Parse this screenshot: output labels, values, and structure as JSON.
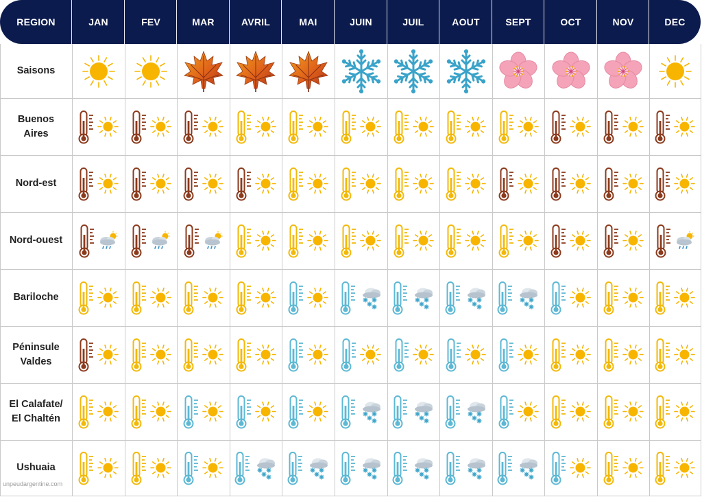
{
  "header": {
    "region_label": "REGION",
    "months": [
      "JAN",
      "FEV",
      "MAR",
      "AVRIL",
      "MAI",
      "JUIN",
      "JUIL",
      "AOUT",
      "SEPT",
      "OCT",
      "NOV",
      "DEC"
    ]
  },
  "colors": {
    "header_bg": "#0c1b4d",
    "hot": "#8b3a1c",
    "warm": "#f2b90a",
    "cold": "#5db8d4",
    "sun": "#f7b500",
    "snow": "#3aa3c9",
    "blossom": "#f4a3b8",
    "leaf": "#e0621a"
  },
  "seasons_row": {
    "label": "Saisons",
    "cells": [
      "sun",
      "sun",
      "maple-leaf",
      "maple-leaf",
      "maple-leaf",
      "snowflake",
      "snowflake",
      "snowflake",
      "blossom",
      "blossom",
      "blossom",
      "sun"
    ]
  },
  "rows": [
    {
      "label": "Buenos\nAires",
      "temps": [
        "hot",
        "hot",
        "hot",
        "warm",
        "warm",
        "warm",
        "warm",
        "warm",
        "warm",
        "hot",
        "hot",
        "hot"
      ],
      "weather": [
        "sun",
        "sun",
        "sun",
        "sun",
        "sun",
        "sun",
        "sun",
        "sun",
        "sun",
        "sun",
        "sun",
        "sun"
      ]
    },
    {
      "label": "Nord-est",
      "temps": [
        "hot",
        "hot",
        "hot",
        "hot",
        "warm",
        "warm",
        "warm",
        "warm",
        "hot",
        "hot",
        "hot",
        "hot"
      ],
      "weather": [
        "sun",
        "sun",
        "sun",
        "sun",
        "sun",
        "sun",
        "sun",
        "sun",
        "sun",
        "sun",
        "sun",
        "sun"
      ]
    },
    {
      "label": "Nord-ouest",
      "temps": [
        "hot",
        "hot",
        "hot",
        "warm",
        "warm",
        "warm",
        "warm",
        "warm",
        "warm",
        "hot",
        "hot",
        "hot"
      ],
      "weather": [
        "rain",
        "rain",
        "rain",
        "sun",
        "sun",
        "sun",
        "sun",
        "sun",
        "sun",
        "sun",
        "sun",
        "rain"
      ]
    },
    {
      "label": "Bariloche",
      "temps": [
        "warm",
        "warm",
        "warm",
        "warm",
        "cold",
        "cold",
        "cold",
        "cold",
        "cold",
        "cold",
        "warm",
        "warm"
      ],
      "weather": [
        "sun",
        "sun",
        "sun",
        "sun",
        "sun",
        "snow",
        "snow",
        "snow",
        "snow",
        "sun",
        "sun",
        "sun"
      ]
    },
    {
      "label": "Péninsule\nValdes",
      "temps": [
        "hot",
        "warm",
        "warm",
        "warm",
        "cold",
        "cold",
        "cold",
        "cold",
        "cold",
        "warm",
        "warm",
        "warm"
      ],
      "weather": [
        "sun",
        "sun",
        "sun",
        "sun",
        "sun",
        "sun",
        "sun",
        "sun",
        "sun",
        "sun",
        "sun",
        "sun"
      ]
    },
    {
      "label": "El Calafate/\nEl Chaltén",
      "temps": [
        "warm",
        "warm",
        "cold",
        "cold",
        "cold",
        "cold",
        "cold",
        "cold",
        "cold",
        "warm",
        "warm",
        "warm"
      ],
      "weather": [
        "sun",
        "sun",
        "sun",
        "sun",
        "sun",
        "snow",
        "snow",
        "snow",
        "sun",
        "sun",
        "sun",
        "sun"
      ]
    },
    {
      "label": "Ushuaia",
      "temps": [
        "warm",
        "warm",
        "cold",
        "cold",
        "cold",
        "cold",
        "cold",
        "cold",
        "cold",
        "cold",
        "warm",
        "warm"
      ],
      "weather": [
        "sun",
        "sun",
        "sun",
        "snow",
        "snow",
        "snow",
        "snow",
        "snow",
        "snow",
        "sun",
        "sun",
        "sun"
      ]
    }
  ],
  "credit": "unpeudargentine.com"
}
